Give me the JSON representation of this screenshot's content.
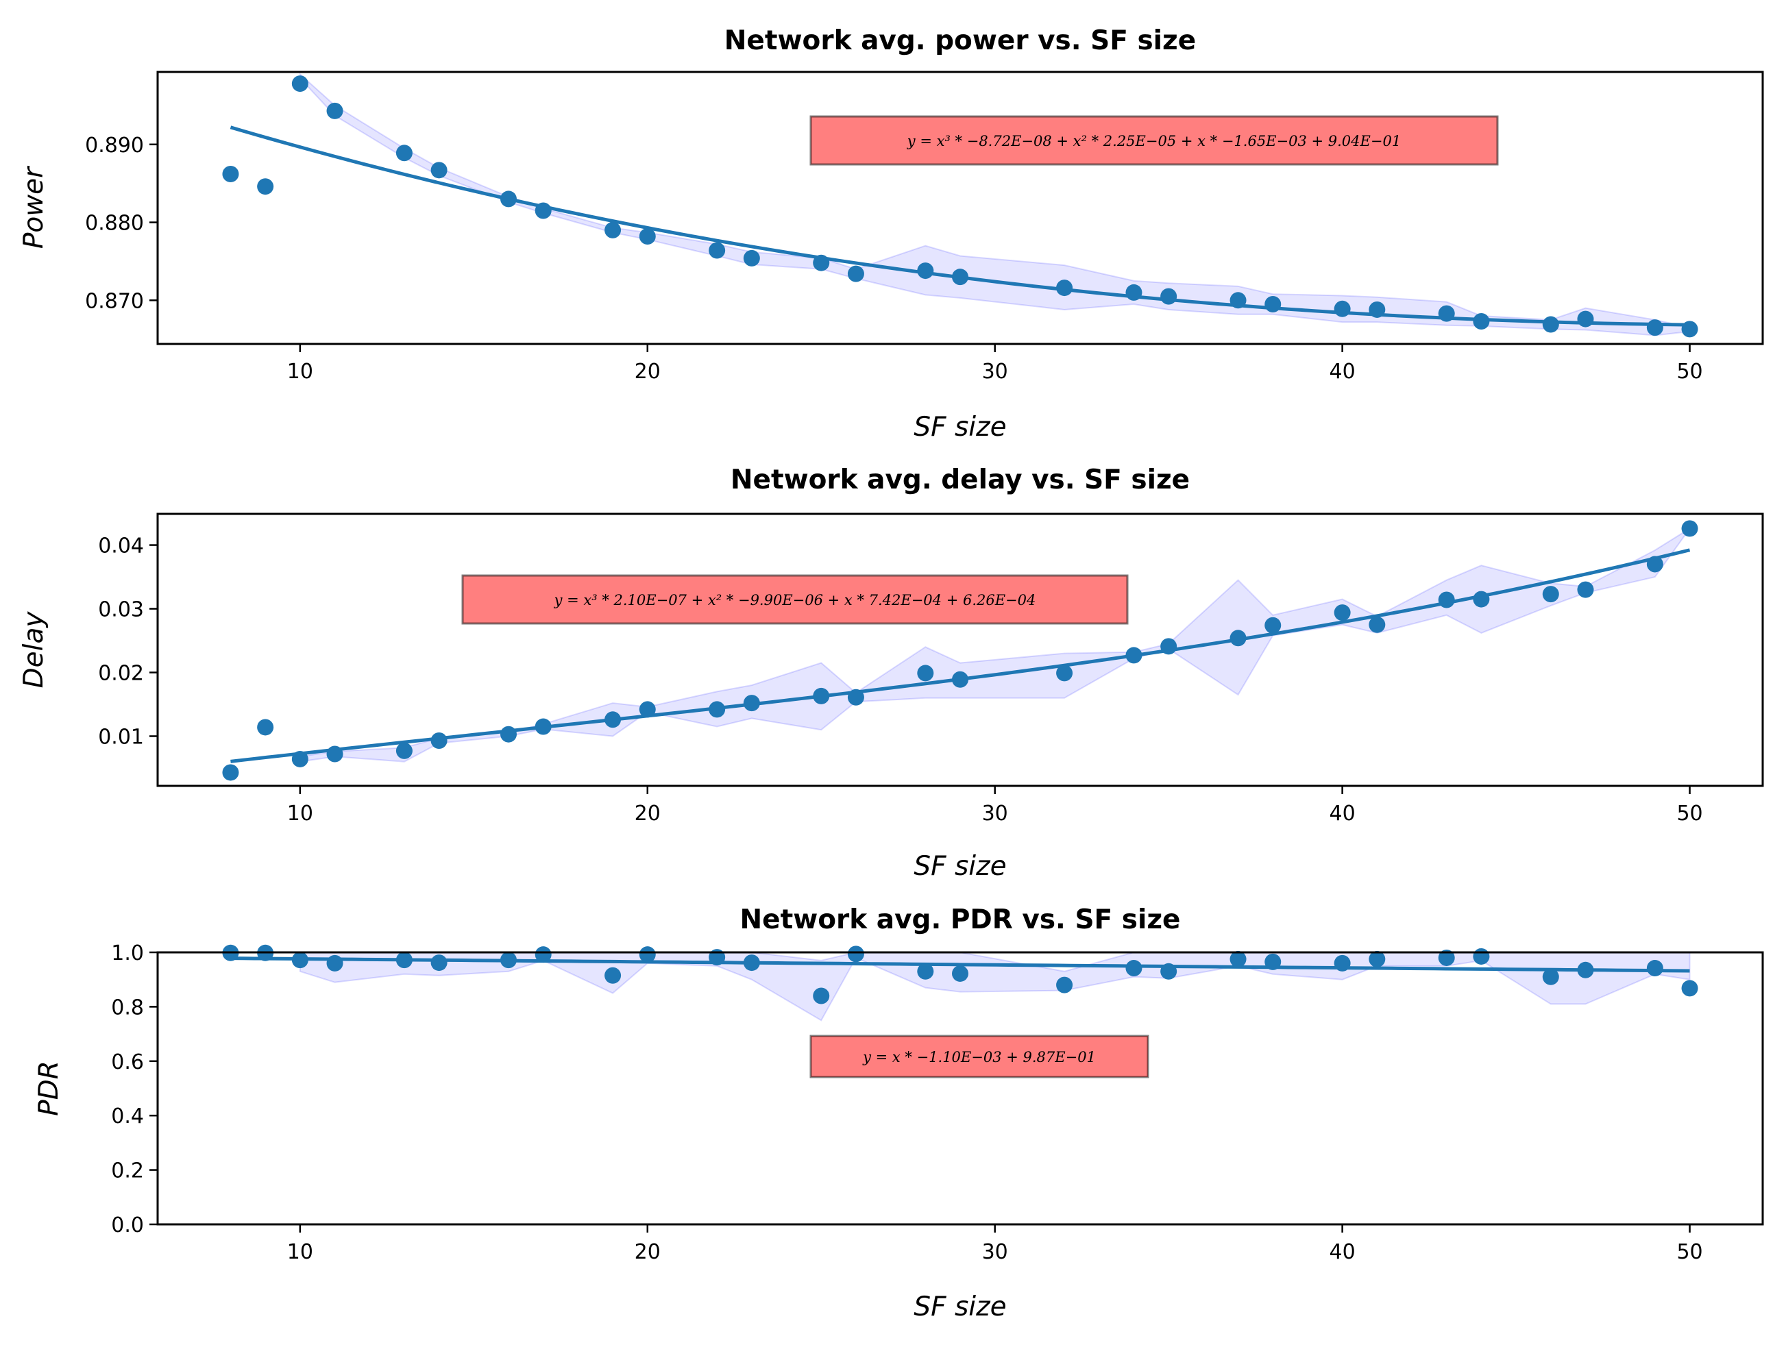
{
  "chart_data": [
    {
      "type": "scatter",
      "title": "Network avg. power vs. SF size",
      "xlabel": "SF size",
      "ylabel": "Power",
      "xlim": [
        5.9,
        52.1
      ],
      "ylim": [
        0.8644,
        0.8993
      ],
      "xticks": [
        10,
        20,
        30,
        40,
        50
      ],
      "yticks": [
        0.87,
        0.88,
        0.89
      ],
      "ytick_labels": [
        "0.870",
        "0.880",
        "0.890"
      ],
      "annotation": "y = x³ * −8.72E−08 + x² * 2.25E−05 + x * −1.65E−03 + 9.04E−01",
      "fit_coefficients": [
        -8.72e-08,
        2.25e-05,
        -0.00165,
        0.904
      ],
      "x": [
        8,
        9,
        10,
        11,
        13,
        14,
        16,
        17,
        19,
        20,
        22,
        23,
        25,
        26,
        28,
        29,
        32,
        34,
        35,
        37,
        38,
        40,
        41,
        43,
        44,
        46,
        47,
        49,
        50
      ],
      "y": [
        0.8862,
        0.8846,
        0.8978,
        0.8943,
        0.8889,
        0.8867,
        0.883,
        0.8815,
        0.879,
        0.8782,
        0.8764,
        0.8754,
        0.8748,
        0.8734,
        0.8738,
        0.873,
        0.8716,
        0.871,
        0.8705,
        0.87,
        0.8695,
        0.8689,
        0.8688,
        0.8683,
        0.8673,
        0.8669,
        0.8676,
        0.8665,
        0.8663
      ],
      "band": {
        "x": [
          10,
          11,
          13,
          14,
          16,
          17,
          19,
          20,
          22,
          23,
          25,
          26,
          28,
          29,
          32,
          34,
          35,
          37,
          38,
          40,
          41,
          43,
          44,
          46,
          47,
          49,
          50
        ],
        "upper": [
          0.899,
          0.895,
          0.8895,
          0.887,
          0.8833,
          0.8818,
          0.8793,
          0.8787,
          0.8772,
          0.8762,
          0.8754,
          0.874,
          0.877,
          0.8757,
          0.8745,
          0.8725,
          0.8722,
          0.8718,
          0.8708,
          0.8706,
          0.8704,
          0.8698,
          0.868,
          0.8675,
          0.869,
          0.8675,
          0.8665
        ],
        "lower": [
          0.8985,
          0.8937,
          0.8883,
          0.886,
          0.8826,
          0.8812,
          0.8787,
          0.8778,
          0.8757,
          0.8746,
          0.874,
          0.8728,
          0.8707,
          0.8703,
          0.8688,
          0.8695,
          0.8688,
          0.8682,
          0.8682,
          0.8672,
          0.8672,
          0.8668,
          0.8667,
          0.8663,
          0.8662,
          0.8655,
          0.866
        ]
      }
    },
    {
      "type": "scatter",
      "title": "Network avg. delay vs. SF size",
      "xlabel": "SF size",
      "ylabel": "Delay",
      "xlim": [
        5.9,
        52.1
      ],
      "ylim": [
        0.0022,
        0.0449
      ],
      "xticks": [
        10,
        20,
        30,
        40,
        50
      ],
      "yticks": [
        0.01,
        0.02,
        0.03,
        0.04
      ],
      "ytick_labels": [
        "0.01",
        "0.02",
        "0.03",
        "0.04"
      ],
      "annotation": "y = x³ * 2.10E−07 + x² * −9.90E−06 + x * 7.42E−04 + 6.26E−04",
      "fit_coefficients": [
        2.1e-07,
        -9.9e-06,
        0.000742,
        0.000626
      ],
      "x": [
        8,
        9,
        10,
        11,
        13,
        14,
        16,
        17,
        19,
        20,
        22,
        23,
        25,
        26,
        28,
        29,
        32,
        34,
        35,
        37,
        38,
        40,
        41,
        43,
        44,
        46,
        47,
        49,
        50
      ],
      "y": [
        0.0043,
        0.0114,
        0.0064,
        0.0072,
        0.0077,
        0.0093,
        0.0103,
        0.0115,
        0.0126,
        0.0142,
        0.0142,
        0.0152,
        0.0163,
        0.0161,
        0.0199,
        0.0189,
        0.0199,
        0.0227,
        0.0241,
        0.0254,
        0.0274,
        0.0294,
        0.0275,
        0.0314,
        0.0315,
        0.0323,
        0.033,
        0.037,
        0.0426
      ],
      "band": {
        "x": [
          10,
          11,
          13,
          14,
          16,
          17,
          19,
          20,
          22,
          23,
          25,
          26,
          28,
          29,
          32,
          34,
          35,
          37,
          38,
          40,
          41,
          43,
          44,
          46,
          47,
          49,
          50
        ],
        "upper": [
          0.0068,
          0.0076,
          0.0082,
          0.0097,
          0.0106,
          0.0119,
          0.0152,
          0.0146,
          0.017,
          0.018,
          0.0215,
          0.0168,
          0.024,
          0.0215,
          0.023,
          0.0232,
          0.0245,
          0.0345,
          0.029,
          0.0315,
          0.0288,
          0.0345,
          0.0368,
          0.034,
          0.0335,
          0.0392,
          0.0426
        ],
        "lower": [
          0.006,
          0.0068,
          0.006,
          0.0089,
          0.01,
          0.0111,
          0.01,
          0.0138,
          0.0115,
          0.0128,
          0.011,
          0.0154,
          0.016,
          0.016,
          0.016,
          0.0222,
          0.0237,
          0.0165,
          0.0258,
          0.0275,
          0.0262,
          0.029,
          0.0262,
          0.0305,
          0.0325,
          0.035,
          0.0426
        ]
      }
    },
    {
      "type": "scatter",
      "title": "Network avg. PDR vs. SF size",
      "xlabel": "SF size",
      "ylabel": "PDR",
      "xlim": [
        5.9,
        52.1
      ],
      "ylim": [
        0.0,
        1.0
      ],
      "xticks": [
        10,
        20,
        30,
        40,
        50
      ],
      "yticks": [
        0.0,
        0.2,
        0.4,
        0.6,
        0.8,
        1.0
      ],
      "ytick_labels": [
        "0.0",
        "0.2",
        "0.4",
        "0.6",
        "0.8",
        "1.0"
      ],
      "annotation": "y = x * −1.10E−03 + 9.87E−01",
      "fit_coefficients": [
        -0.0011,
        0.987
      ],
      "x": [
        8,
        9,
        10,
        11,
        13,
        14,
        16,
        17,
        19,
        20,
        22,
        23,
        25,
        26,
        28,
        29,
        32,
        34,
        35,
        37,
        38,
        40,
        41,
        43,
        44,
        46,
        47,
        49,
        50
      ],
      "y": [
        0.998,
        0.998,
        0.972,
        0.96,
        0.972,
        0.962,
        0.972,
        0.992,
        0.915,
        0.992,
        0.982,
        0.962,
        0.84,
        0.994,
        0.93,
        0.922,
        0.88,
        0.942,
        0.93,
        0.975,
        0.965,
        0.96,
        0.975,
        0.98,
        0.985,
        0.91,
        0.935,
        0.942,
        0.868
      ],
      "band": {
        "x": [
          10,
          11,
          13,
          14,
          16,
          17,
          19,
          20,
          22,
          23,
          25,
          26,
          28,
          29,
          32,
          34,
          35,
          37,
          38,
          40,
          41,
          43,
          44,
          46,
          47,
          49,
          50
        ],
        "upper": [
          1.0,
          1.0,
          1.0,
          1.0,
          1.0,
          1.0,
          1.0,
          1.0,
          1.0,
          1.0,
          0.97,
          1.0,
          1.0,
          1.0,
          0.93,
          1.0,
          1.0,
          1.0,
          1.0,
          1.0,
          1.0,
          1.0,
          1.0,
          1.0,
          1.0,
          1.0,
          1.0
        ],
        "lower": [
          0.93,
          0.89,
          0.92,
          0.915,
          0.93,
          0.97,
          0.85,
          0.96,
          0.95,
          0.9,
          0.75,
          0.98,
          0.87,
          0.855,
          0.86,
          0.91,
          0.905,
          0.95,
          0.92,
          0.9,
          0.95,
          0.95,
          0.97,
          0.81,
          0.81,
          0.92,
          0.9
        ]
      }
    }
  ]
}
